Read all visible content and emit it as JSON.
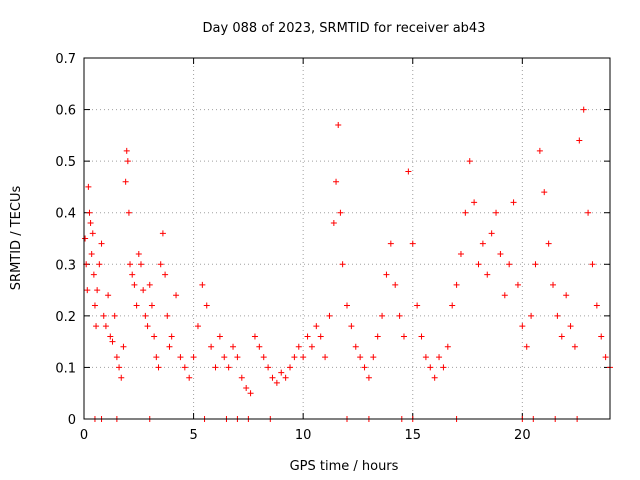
{
  "chart_data": {
    "type": "scatter",
    "title": "Day 088 of 2023, SRMTID for receiver ab43",
    "xlabel": "GPS time / hours",
    "ylabel": "SRMTID / TECUs",
    "xlim": [
      0,
      24
    ],
    "ylim": [
      0,
      0.7
    ],
    "xticks": [
      0,
      5,
      10,
      15,
      20
    ],
    "yticks": [
      0,
      0.1,
      0.2,
      0.3,
      0.4,
      0.5,
      0.6,
      0.7
    ],
    "xtick_labels": [
      "0",
      "5",
      "10",
      "15",
      "20"
    ],
    "ytick_labels": [
      "0",
      "0.1",
      "0.2",
      "0.3",
      "0.4",
      "0.5",
      "0.6",
      "0.7"
    ],
    "grid": true,
    "color": "#ff0000",
    "marker": "plus",
    "series": [
      {
        "name": "SRMTID",
        "points": [
          [
            0.05,
            0.35
          ],
          [
            0.1,
            0.3
          ],
          [
            0.15,
            0.25
          ],
          [
            0.2,
            0.45
          ],
          [
            0.25,
            0.4
          ],
          [
            0.3,
            0.38
          ],
          [
            0.35,
            0.32
          ],
          [
            0.4,
            0.36
          ],
          [
            0.45,
            0.28
          ],
          [
            0.5,
            0.22
          ],
          [
            0.55,
            0.18
          ],
          [
            0.6,
            0.25
          ],
          [
            0.7,
            0.3
          ],
          [
            0.8,
            0.34
          ],
          [
            0.9,
            0.2
          ],
          [
            1.0,
            0.18
          ],
          [
            1.1,
            0.24
          ],
          [
            1.2,
            0.16
          ],
          [
            1.3,
            0.15
          ],
          [
            1.4,
            0.2
          ],
          [
            1.5,
            0.12
          ],
          [
            1.6,
            0.1
          ],
          [
            1.7,
            0.08
          ],
          [
            1.8,
            0.14
          ],
          [
            1.9,
            0.46
          ],
          [
            1.95,
            0.52
          ],
          [
            2.0,
            0.5
          ],
          [
            2.05,
            0.4
          ],
          [
            2.1,
            0.3
          ],
          [
            2.2,
            0.28
          ],
          [
            2.3,
            0.26
          ],
          [
            2.4,
            0.22
          ],
          [
            2.5,
            0.32
          ],
          [
            2.6,
            0.3
          ],
          [
            2.7,
            0.25
          ],
          [
            2.8,
            0.2
          ],
          [
            2.9,
            0.18
          ],
          [
            3.0,
            0.26
          ],
          [
            3.1,
            0.22
          ],
          [
            3.2,
            0.16
          ],
          [
            3.3,
            0.12
          ],
          [
            3.4,
            0.1
          ],
          [
            3.5,
            0.3
          ],
          [
            3.6,
            0.36
          ],
          [
            3.7,
            0.28
          ],
          [
            3.8,
            0.2
          ],
          [
            3.9,
            0.14
          ],
          [
            4.0,
            0.16
          ],
          [
            4.2,
            0.24
          ],
          [
            4.4,
            0.12
          ],
          [
            4.6,
            0.1
          ],
          [
            4.8,
            0.08
          ],
          [
            5.0,
            0.12
          ],
          [
            5.2,
            0.18
          ],
          [
            5.4,
            0.26
          ],
          [
            5.6,
            0.22
          ],
          [
            5.8,
            0.14
          ],
          [
            6.0,
            0.1
          ],
          [
            6.2,
            0.16
          ],
          [
            6.4,
            0.12
          ],
          [
            6.6,
            0.1
          ],
          [
            6.8,
            0.14
          ],
          [
            7.0,
            0.12
          ],
          [
            7.2,
            0.08
          ],
          [
            7.4,
            0.06
          ],
          [
            7.6,
            0.05
          ],
          [
            7.8,
            0.16
          ],
          [
            8.0,
            0.14
          ],
          [
            8.2,
            0.12
          ],
          [
            8.4,
            0.1
          ],
          [
            8.6,
            0.08
          ],
          [
            8.8,
            0.07
          ],
          [
            9.0,
            0.09
          ],
          [
            9.2,
            0.08
          ],
          [
            9.4,
            0.1
          ],
          [
            9.6,
            0.12
          ],
          [
            9.8,
            0.14
          ],
          [
            10.0,
            0.12
          ],
          [
            10.2,
            0.16
          ],
          [
            10.4,
            0.14
          ],
          [
            10.6,
            0.18
          ],
          [
            10.8,
            0.16
          ],
          [
            11.0,
            0.12
          ],
          [
            11.2,
            0.2
          ],
          [
            11.4,
            0.38
          ],
          [
            11.5,
            0.46
          ],
          [
            11.6,
            0.57
          ],
          [
            11.7,
            0.4
          ],
          [
            11.8,
            0.3
          ],
          [
            12.0,
            0.22
          ],
          [
            12.2,
            0.18
          ],
          [
            12.4,
            0.14
          ],
          [
            12.6,
            0.12
          ],
          [
            12.8,
            0.1
          ],
          [
            13.0,
            0.08
          ],
          [
            13.2,
            0.12
          ],
          [
            13.4,
            0.16
          ],
          [
            13.6,
            0.2
          ],
          [
            13.8,
            0.28
          ],
          [
            14.0,
            0.34
          ],
          [
            14.2,
            0.26
          ],
          [
            14.4,
            0.2
          ],
          [
            14.6,
            0.16
          ],
          [
            14.8,
            0.48
          ],
          [
            15.0,
            0.34
          ],
          [
            15.2,
            0.22
          ],
          [
            15.4,
            0.16
          ],
          [
            15.6,
            0.12
          ],
          [
            15.8,
            0.1
          ],
          [
            16.0,
            0.08
          ],
          [
            16.2,
            0.12
          ],
          [
            16.4,
            0.1
          ],
          [
            16.6,
            0.14
          ],
          [
            16.8,
            0.22
          ],
          [
            17.0,
            0.26
          ],
          [
            17.2,
            0.32
          ],
          [
            17.4,
            0.4
          ],
          [
            17.6,
            0.5
          ],
          [
            17.8,
            0.42
          ],
          [
            18.0,
            0.3
          ],
          [
            18.2,
            0.34
          ],
          [
            18.4,
            0.28
          ],
          [
            18.6,
            0.36
          ],
          [
            18.8,
            0.4
          ],
          [
            19.0,
            0.32
          ],
          [
            19.2,
            0.24
          ],
          [
            19.4,
            0.3
          ],
          [
            19.6,
            0.42
          ],
          [
            19.8,
            0.26
          ],
          [
            20.0,
            0.18
          ],
          [
            20.2,
            0.14
          ],
          [
            20.4,
            0.2
          ],
          [
            20.6,
            0.3
          ],
          [
            20.8,
            0.52
          ],
          [
            21.0,
            0.44
          ],
          [
            21.2,
            0.34
          ],
          [
            21.4,
            0.26
          ],
          [
            21.6,
            0.2
          ],
          [
            21.8,
            0.16
          ],
          [
            22.0,
            0.24
          ],
          [
            22.2,
            0.18
          ],
          [
            22.4,
            0.14
          ],
          [
            22.6,
            0.54
          ],
          [
            22.8,
            0.6
          ],
          [
            23.0,
            0.4
          ],
          [
            23.2,
            0.3
          ],
          [
            23.4,
            0.22
          ],
          [
            23.6,
            0.16
          ],
          [
            23.8,
            0.12
          ],
          [
            24.0,
            0.1
          ]
        ]
      },
      {
        "name": "zero-line",
        "points": [
          [
            0.5,
            0
          ],
          [
            0.8,
            0
          ],
          [
            1.5,
            0
          ],
          [
            3.0,
            0
          ],
          [
            5.5,
            0
          ],
          [
            6.5,
            0
          ],
          [
            7.0,
            0
          ],
          [
            7.5,
            0
          ],
          [
            8.5,
            0
          ],
          [
            12.0,
            0
          ],
          [
            13.0,
            0
          ],
          [
            14.5,
            0
          ],
          [
            15.0,
            0
          ],
          [
            17.0,
            0
          ],
          [
            20.0,
            0
          ],
          [
            20.5,
            0
          ],
          [
            21.5,
            0
          ],
          [
            22.5,
            0
          ]
        ]
      }
    ]
  }
}
